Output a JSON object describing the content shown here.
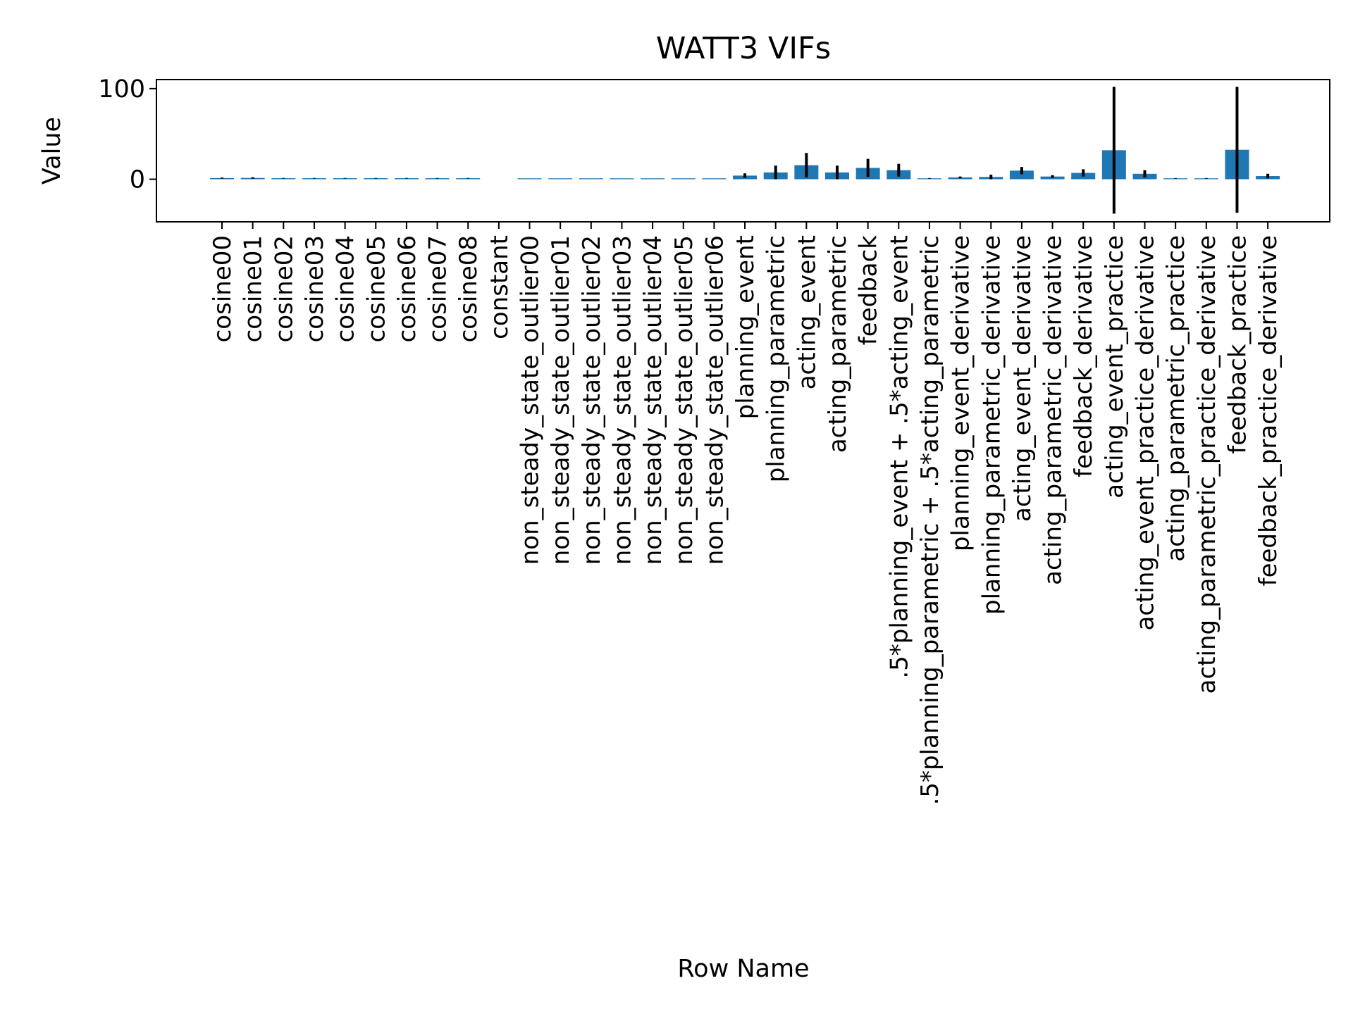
{
  "chart_data": {
    "type": "bar",
    "title": "WATT3 VIFs",
    "xlabel": "Row Name",
    "ylabel": "Value",
    "ylim": [
      -47,
      110
    ],
    "yticks": [
      0,
      100
    ],
    "grid": false,
    "legend": "none",
    "bar_color": "#1f77b4",
    "errorbar_color": "#000000",
    "categories": [
      "cosine00",
      "cosine01",
      "cosine02",
      "cosine03",
      "cosine04",
      "cosine05",
      "cosine06",
      "cosine07",
      "cosine08",
      "constant",
      "non_steady_state_outlier00",
      "non_steady_state_outlier01",
      "non_steady_state_outlier02",
      "non_steady_state_outlier03",
      "non_steady_state_outlier04",
      "non_steady_state_outlier05",
      "non_steady_state_outlier06",
      "planning_event",
      "planning_parametric",
      "acting_event",
      "acting_parametric",
      "feedback",
      ".5*planning_event + .5*acting_event",
      ".5*planning_parametric + .5*acting_parametric",
      "planning_event_derivative",
      "planning_parametric_derivative",
      "acting_event_derivative",
      "acting_parametric_derivative",
      "feedback_derivative",
      "acting_event_practice",
      "acting_event_practice_derivative",
      "acting_parametric_practice",
      "acting_parametric_practice_derivative",
      "feedback_practice",
      "feedback_practice_derivative"
    ],
    "values": [
      1.3,
      1.4,
      1.1,
      1.1,
      1.1,
      1.1,
      1.1,
      1.1,
      1.1,
      null,
      1.0,
      1.0,
      1.0,
      1.0,
      1.0,
      1.0,
      1.0,
      4.0,
      7.5,
      15.5,
      7.5,
      12.5,
      10.0,
      1.0,
      2.0,
      2.5,
      9.5,
      3.0,
      7.0,
      32.0,
      6.0,
      1.0,
      1.0,
      32.5,
      3.5
    ],
    "errors": [
      0.6,
      0.8,
      0.3,
      0.3,
      0.3,
      0.3,
      0.3,
      0.3,
      0.3,
      null,
      0.0,
      0.0,
      0.0,
      0.0,
      0.0,
      0.0,
      0.0,
      2.5,
      7.5,
      13.5,
      7.5,
      10.0,
      7.0,
      0.3,
      1.0,
      2.5,
      4.0,
      1.5,
      4.0,
      70.0,
      4.0,
      0.3,
      0.3,
      69.5,
      2.5
    ]
  }
}
